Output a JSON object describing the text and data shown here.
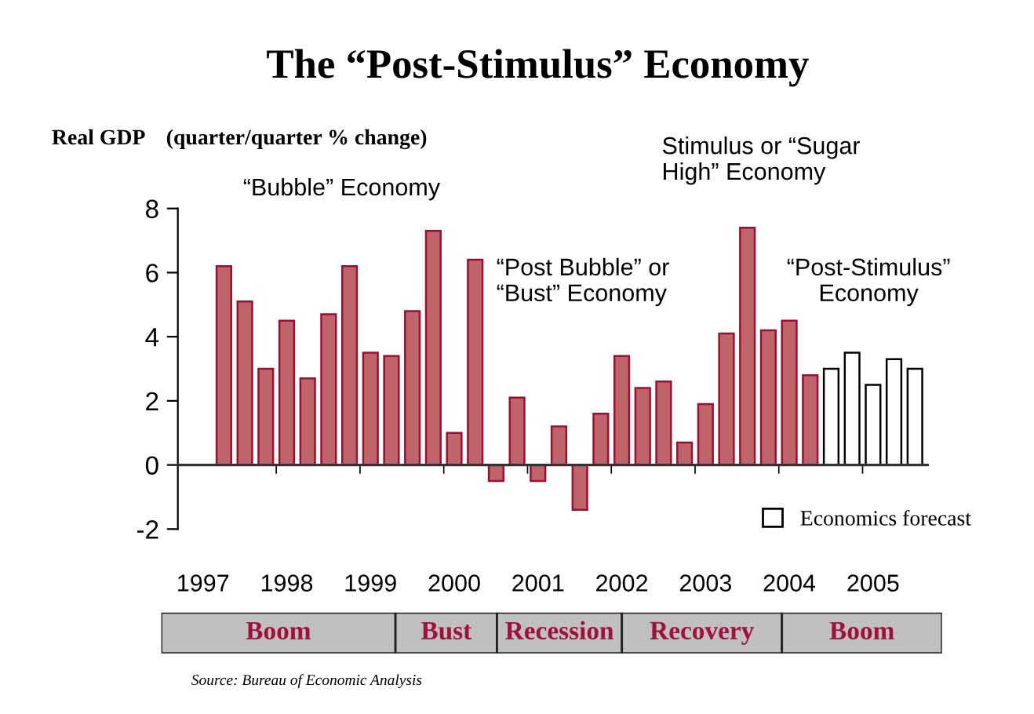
{
  "chart_data": {
    "type": "bar",
    "title": "The “Post-Stimulus” Economy",
    "ylabel": "Real GDP    (quarter/quarter % change)",
    "categories": [
      "1997",
      null,
      null,
      null,
      "1998",
      null,
      null,
      null,
      "1999",
      null,
      null,
      null,
      "2000",
      null,
      null,
      null,
      "2001",
      null,
      null,
      null,
      "2002",
      null,
      null,
      null,
      "2003",
      null,
      null,
      null,
      "2004",
      null,
      null,
      null,
      "2005",
      null,
      null
    ],
    "series": [
      {
        "color": "#c0646c",
        "values": [
          null,
          6.2,
          5.1,
          3.0,
          4.5,
          2.7,
          4.7,
          6.2,
          3.5,
          3.4,
          4.8,
          7.3,
          1.0,
          6.4,
          -0.5,
          2.1,
          -0.5,
          1.2,
          -1.4,
          1.6,
          3.4,
          2.4,
          2.6,
          0.7,
          1.9,
          4.1,
          7.4,
          4.2,
          4.5,
          2.8,
          null,
          null,
          null,
          null,
          null
        ]
      },
      {
        "name": "Economics forecast",
        "color": "#ffffff",
        "values": [
          null,
          null,
          null,
          null,
          null,
          null,
          null,
          null,
          null,
          null,
          null,
          null,
          null,
          null,
          null,
          null,
          null,
          null,
          null,
          null,
          null,
          null,
          null,
          null,
          null,
          null,
          null,
          null,
          null,
          null,
          3.0,
          3.5,
          2.5,
          3.3,
          3.0
        ]
      }
    ],
    "ylim": [
      -2,
      8
    ],
    "yticks": [
      -2,
      0,
      2,
      4,
      6,
      8
    ],
    "legend": "bottom right",
    "annotations": [
      "“Bubble” Economy",
      "“Post Bubble” or\n“Bust” Economy",
      "Stimulus or “Sugar\nHigh” Economy",
      "“Post-Stimulus”\nEconomy",
      "Boom",
      "Bust",
      "Recession",
      "Recovery",
      "Boom",
      "Source: Bureau of Economic Analysis"
    ]
  }
}
